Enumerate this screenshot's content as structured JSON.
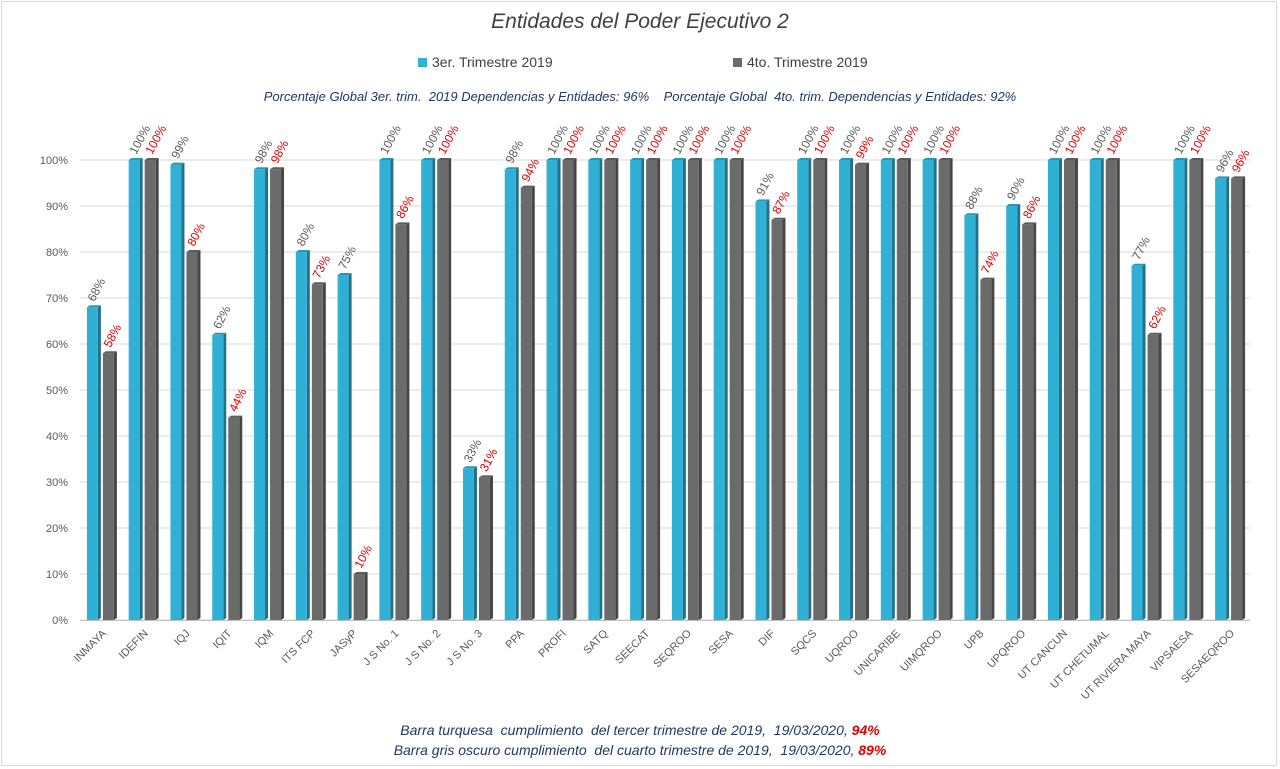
{
  "title": "Entidades del Poder Ejecutivo 2",
  "legend": [
    {
      "label": "3er. Trimestre 2019",
      "color": "#31b0d5"
    },
    {
      "label": "4to. Trimestre 2019",
      "color": "#6b6b6b"
    }
  ],
  "global_line": "Porcentaje Global 3er. trim.  2019 Dependencias y Entidades: 96%    Porcentaje Global  4to. trim. Dependencias y Entidades: 92%",
  "footer": {
    "line1_text": "Barra turquesa  cumplimiento  del tercer trimestre de 2019,  19/03/2020,",
    "line1_pct": "94%",
    "line2_text": "Barra gris oscuro cumplimiento  del cuarto trimestre de 2019,  19/03/2020,",
    "line2_pct": "89%"
  },
  "chart_data": {
    "type": "bar",
    "title": "Entidades del Poder Ejecutivo 2",
    "categories": [
      "INMAYA",
      "IDEFIN",
      "IQJ",
      "IQIT",
      "IQM",
      "ITS FCP",
      "JASyP",
      "J S No. 1",
      "J S No. 2",
      "J S No. 3",
      "PPA",
      "PROFI",
      "SATQ",
      "SEECAT",
      "SEQROO",
      "SESA",
      "DIF",
      "SQCS",
      "UQROO",
      "UNICARIBE",
      "UIMQROO",
      "UPB",
      "UPQROO",
      "UT CANCUN",
      "UT CHETUMAL",
      "UT RIVIERA MAYA",
      "VIPSAESA",
      "SESAEQROO"
    ],
    "series": [
      {
        "name": "3er. Trimestre 2019",
        "color": "#31b0d5",
        "label_color": "#595959",
        "values": [
          68,
          100,
          99,
          62,
          98,
          80,
          75,
          100,
          100,
          33,
          98,
          100,
          100,
          100,
          100,
          100,
          91,
          100,
          100,
          100,
          100,
          88,
          90,
          100,
          100,
          77,
          100,
          96
        ]
      },
      {
        "name": "4to. Trimestre 2019",
        "color": "#6b6b6b",
        "label_color": "#e00000",
        "values": [
          58,
          100,
          80,
          44,
          98,
          73,
          10,
          86,
          100,
          31,
          94,
          100,
          100,
          100,
          100,
          100,
          87,
          100,
          99,
          100,
          100,
          74,
          86,
          100,
          100,
          62,
          100,
          96
        ]
      }
    ],
    "yticks": [
      "0%",
      "10%",
      "20%",
      "30%",
      "40%",
      "50%",
      "60%",
      "70%",
      "80%",
      "90%",
      "100%"
    ],
    "ylim": [
      0,
      100
    ],
    "grid": true,
    "legend_position": "top"
  }
}
